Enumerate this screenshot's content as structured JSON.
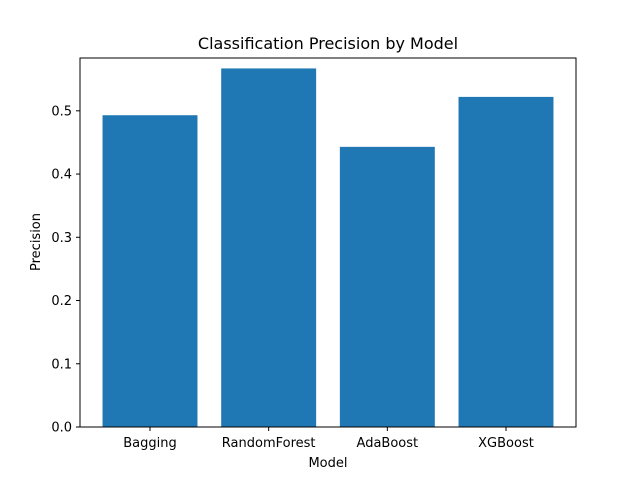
{
  "chart_data": {
    "type": "bar",
    "title": "Classification Precision by Model",
    "xlabel": "Model",
    "ylabel": "Precision",
    "categories": [
      "Bagging",
      "RandomForest",
      "AdaBoost",
      "XGBoost"
    ],
    "values": [
      0.493,
      0.567,
      0.443,
      0.522
    ],
    "ylim": [
      0,
      0.5835
    ],
    "yticks": [
      0.0,
      0.1,
      0.2,
      0.3,
      0.4,
      0.5
    ],
    "ytick_labels": [
      "0.0",
      "0.1",
      "0.2",
      "0.3",
      "0.4",
      "0.5"
    ],
    "grid": false,
    "bar_color": "#1f77b4"
  }
}
